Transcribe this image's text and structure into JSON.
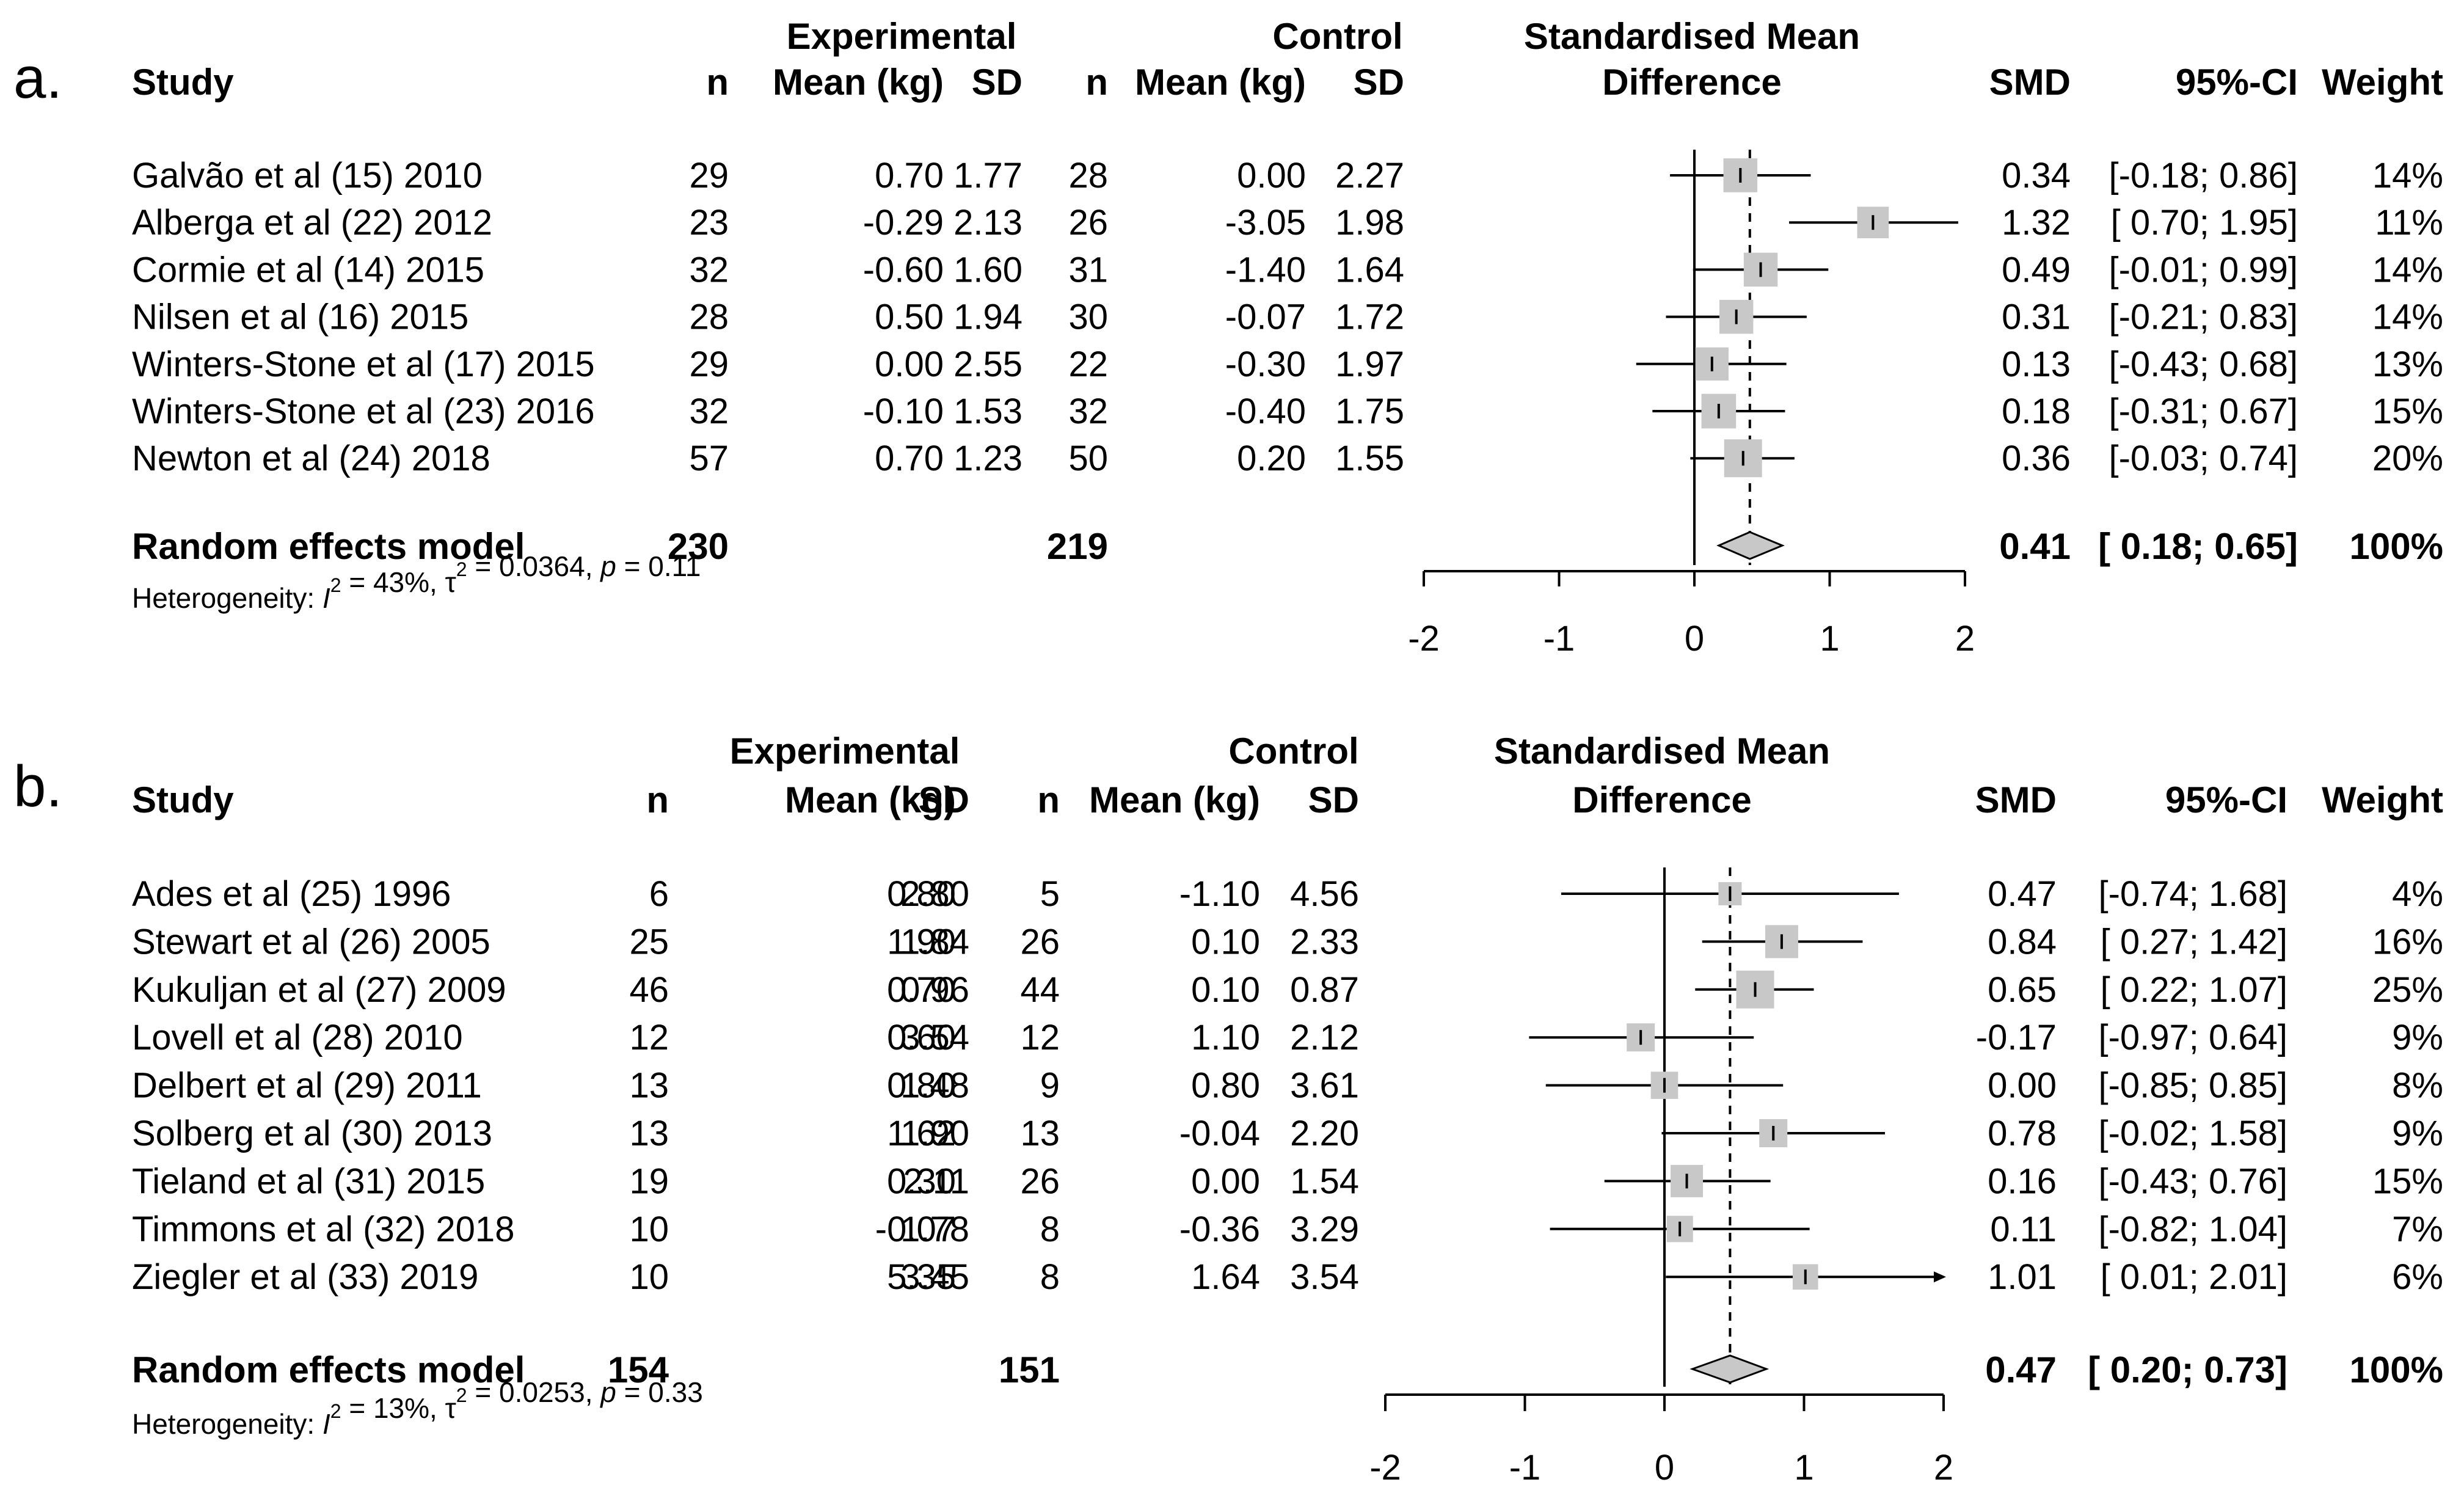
{
  "panels": [
    {
      "label": "a.",
      "header": {
        "experimental": "Experimental",
        "control": "Control",
        "plot_title_line1": "Standardised Mean",
        "plot_title_line2": "Difference",
        "study": "Study",
        "n": "n",
        "mean": "Mean (kg)",
        "sd": "SD",
        "smd": "SMD",
        "ci": "95%-CI",
        "weight": "Weight"
      },
      "studies": [
        {
          "name": "Galvão et al (15) 2010",
          "e_n": "29",
          "e_mean": "0.70",
          "e_sd": "1.77",
          "c_n": "28",
          "c_mean": "0.00",
          "c_sd": "2.27",
          "smd": "0.34",
          "ci": "[-0.18; 0.86]",
          "weight": "14%"
        },
        {
          "name": "Alberga et al (22) 2012",
          "e_n": "23",
          "e_mean": "-0.29",
          "e_sd": "2.13",
          "c_n": "26",
          "c_mean": "-3.05",
          "c_sd": "1.98",
          "smd": "1.32",
          "ci": "[ 0.70; 1.95]",
          "weight": "11%"
        },
        {
          "name": "Cormie et al (14) 2015",
          "e_n": "32",
          "e_mean": "-0.60",
          "e_sd": "1.60",
          "c_n": "31",
          "c_mean": "-1.40",
          "c_sd": "1.64",
          "smd": "0.49",
          "ci": "[-0.01; 0.99]",
          "weight": "14%"
        },
        {
          "name": "Nilsen et al (16) 2015",
          "e_n": "28",
          "e_mean": "0.50",
          "e_sd": "1.94",
          "c_n": "30",
          "c_mean": "-0.07",
          "c_sd": "1.72",
          "smd": "0.31",
          "ci": "[-0.21; 0.83]",
          "weight": "14%"
        },
        {
          "name": "Winters-Stone et al (17) 2015",
          "e_n": "29",
          "e_mean": "0.00",
          "e_sd": "2.55",
          "c_n": "22",
          "c_mean": "-0.30",
          "c_sd": "1.97",
          "smd": "0.13",
          "ci": "[-0.43; 0.68]",
          "weight": "13%"
        },
        {
          "name": "Winters-Stone et al (23) 2016",
          "e_n": "32",
          "e_mean": "-0.10",
          "e_sd": "1.53",
          "c_n": "32",
          "c_mean": "-0.40",
          "c_sd": "1.75",
          "smd": "0.18",
          "ci": "[-0.31; 0.67]",
          "weight": "15%"
        },
        {
          "name": "Newton et al (24) 2018",
          "e_n": "57",
          "e_mean": "0.70",
          "e_sd": "1.23",
          "c_n": "50",
          "c_mean": "0.20",
          "c_sd": "1.55",
          "smd": "0.36",
          "ci": "[-0.03; 0.74]",
          "weight": "20%"
        }
      ],
      "pooled": {
        "label": "Random effects model",
        "e_n": "230",
        "c_n": "219",
        "smd": "0.41",
        "ci": "[ 0.18; 0.65]",
        "weight": "100%"
      },
      "heterogeneity": {
        "prefix": "Heterogeneity: ",
        "i2": "I",
        "i2_value": " = 43%, ",
        "tau": "τ",
        "tau_value": " = 0.0364, ",
        "p": "p",
        "p_value": " = 0.11"
      }
    },
    {
      "label": "b.",
      "header": {
        "experimental": "Experimental",
        "control": "Control",
        "plot_title_line1": "Standardised Mean",
        "plot_title_line2": "Difference",
        "study": "Study",
        "n": "n",
        "mean": "Mean (kg)",
        "sd": "SD",
        "smd": "SMD",
        "ci": "95%-CI",
        "weight": "Weight"
      },
      "studies": [
        {
          "name": "Ades et al (25) 1996",
          "e_n": "6",
          "e_mean": "0.80",
          "e_sd": "2.80",
          "c_n": "5",
          "c_mean": "-1.10",
          "c_sd": "4.56",
          "smd": "0.47",
          "ci": "[-0.74; 1.68]",
          "weight": "4%"
        },
        {
          "name": "Stewart et al (26) 2005",
          "e_n": "25",
          "e_mean": "1.90",
          "e_sd": "1.84",
          "c_n": "26",
          "c_mean": "0.10",
          "c_sd": "2.33",
          "smd": "0.84",
          "ci": "[ 0.27; 1.42]",
          "weight": "16%"
        },
        {
          "name": "Kukuljan et al (27) 2009",
          "e_n": "46",
          "e_mean": "0.70",
          "e_sd": "0.96",
          "c_n": "44",
          "c_mean": "0.10",
          "c_sd": "0.87",
          "smd": "0.65",
          "ci": "[ 0.22; 1.07]",
          "weight": "25%"
        },
        {
          "name": "Lovell et al (28) 2010",
          "e_n": "12",
          "e_mean": "0.60",
          "e_sd": "3.54",
          "c_n": "12",
          "c_mean": "1.10",
          "c_sd": "2.12",
          "smd": "-0.17",
          "ci": "[-0.97; 0.64]",
          "weight": "9%"
        },
        {
          "name": "Delbert et al (29) 2011",
          "e_n": "13",
          "e_mean": "0.80",
          "e_sd": "1.48",
          "c_n": "9",
          "c_mean": "0.80",
          "c_sd": "3.61",
          "smd": "0.00",
          "ci": "[-0.85; 0.85]",
          "weight": "8%"
        },
        {
          "name": "Solberg et al (30) 2013",
          "e_n": "13",
          "e_mean": "1.62",
          "e_sd": "1.90",
          "c_n": "13",
          "c_mean": "-0.04",
          "c_sd": "2.20",
          "smd": "0.78",
          "ci": "[-0.02; 1.58]",
          "weight": "9%"
        },
        {
          "name": "Tieland et al (31) 2015",
          "e_n": "19",
          "e_mean": "0.30",
          "e_sd": "2.11",
          "c_n": "26",
          "c_mean": "0.00",
          "c_sd": "1.54",
          "smd": "0.16",
          "ci": "[-0.43; 0.76]",
          "weight": "15%"
        },
        {
          "name": "Timmons et al (32) 2018",
          "e_n": "10",
          "e_mean": "-0.07",
          "e_sd": "1.78",
          "c_n": "8",
          "c_mean": "-0.36",
          "c_sd": "3.29",
          "smd": "0.11",
          "ci": "[-0.82; 1.04]",
          "weight": "7%"
        },
        {
          "name": "Ziegler et al (33) 2019",
          "e_n": "10",
          "e_mean": "5.35",
          "e_sd": "3.45",
          "c_n": "8",
          "c_mean": "1.64",
          "c_sd": "3.54",
          "smd": "1.01",
          "ci": "[ 0.01; 2.01]",
          "weight": "6%"
        }
      ],
      "pooled": {
        "label": "Random effects model",
        "e_n": "154",
        "c_n": "151",
        "smd": "0.47",
        "ci": "[ 0.20; 0.73]",
        "weight": "100%"
      },
      "heterogeneity": {
        "prefix": "Heterogeneity: ",
        "i2": "I",
        "i2_value": " = 13%, ",
        "tau": "τ",
        "tau_value": " = 0.0253, ",
        "p": "p",
        "p_value": " = 0.33"
      }
    }
  ],
  "chart_data": [
    {
      "type": "forest",
      "xlim": [
        -2,
        2
      ],
      "xticks": [
        -2,
        -1,
        0,
        1,
        2
      ],
      "null_line": 0,
      "categories": [
        "Galvão et al (15) 2010",
        "Alberga et al (22) 2012",
        "Cormie et al (14) 2015",
        "Nilsen et al (16) 2015",
        "Winters-Stone et al (17) 2015",
        "Winters-Stone et al (23) 2016",
        "Newton et al (24) 2018"
      ],
      "smd": [
        0.34,
        1.32,
        0.49,
        0.31,
        0.13,
        0.18,
        0.36
      ],
      "lower": [
        -0.18,
        0.7,
        -0.01,
        -0.21,
        -0.43,
        -0.31,
        -0.03
      ],
      "upper": [
        0.86,
        1.95,
        0.99,
        0.83,
        0.68,
        0.67,
        0.74
      ],
      "weight": [
        14,
        11,
        14,
        14,
        13,
        15,
        20
      ],
      "pooled": {
        "smd": 0.41,
        "lower": 0.18,
        "upper": 0.65
      }
    },
    {
      "type": "forest",
      "xlim": [
        -2,
        2
      ],
      "xticks": [
        -2,
        -1,
        0,
        1,
        2
      ],
      "null_line": 0,
      "categories": [
        "Ades et al (25) 1996",
        "Stewart et al (26) 2005",
        "Kukuljan et al (27) 2009",
        "Lovell et al (28) 2010",
        "Delbert et al (29) 2011",
        "Solberg et al (30) 2013",
        "Tieland et al (31) 2015",
        "Timmons et al (32) 2018",
        "Ziegler et al (33) 2019"
      ],
      "smd": [
        0.47,
        0.84,
        0.65,
        -0.17,
        0.0,
        0.78,
        0.16,
        0.11,
        1.01
      ],
      "lower": [
        -0.74,
        0.27,
        0.22,
        -0.97,
        -0.85,
        -0.02,
        -0.43,
        -0.82,
        0.01
      ],
      "upper": [
        1.68,
        1.42,
        1.07,
        0.64,
        0.85,
        1.58,
        0.76,
        1.04,
        2.01
      ],
      "weight": [
        4,
        16,
        25,
        9,
        8,
        9,
        15,
        7,
        6
      ],
      "pooled": {
        "smd": 0.47,
        "lower": 0.2,
        "upper": 0.73
      }
    }
  ]
}
